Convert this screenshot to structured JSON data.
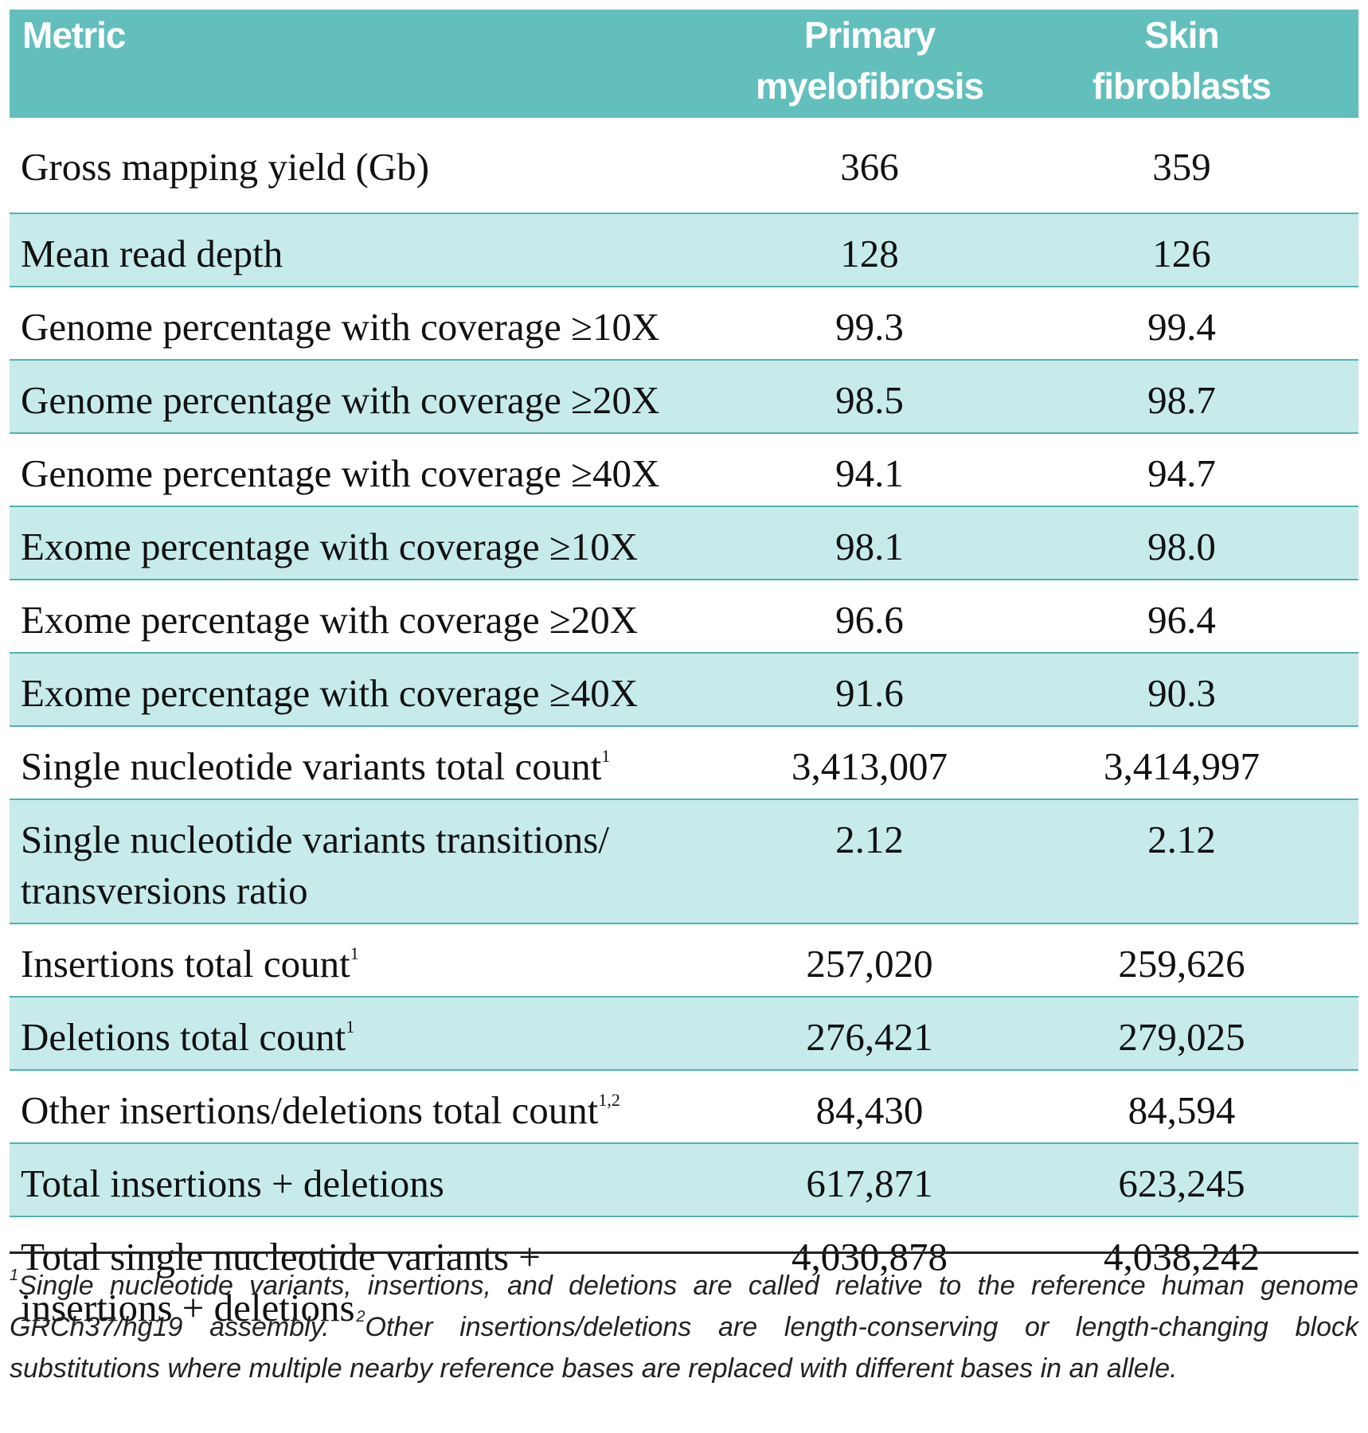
{
  "table": {
    "headers": {
      "metric": "Metric",
      "primary_myelofibrosis": [
        "Primary",
        "myelofibrosis"
      ],
      "skin_fibroblasts": [
        "Skin",
        "fibroblasts"
      ]
    },
    "rows": [
      {
        "metric": "Gross mapping yield (Gb)",
        "sup": "",
        "primary": "366",
        "skin": "359"
      },
      {
        "metric": "Mean read depth",
        "sup": "",
        "primary": "128",
        "skin": "126"
      },
      {
        "metric": "Genome percentage with coverage ≥10X",
        "sup": "",
        "primary": "99.3",
        "skin": "99.4"
      },
      {
        "metric": "Genome percentage with coverage ≥20X",
        "sup": "",
        "primary": "98.5",
        "skin": "98.7"
      },
      {
        "metric": "Genome percentage with coverage ≥40X",
        "sup": "",
        "primary": "94.1",
        "skin": "94.7"
      },
      {
        "metric": "Exome percentage with coverage ≥10X",
        "sup": "",
        "primary": "98.1",
        "skin": "98.0"
      },
      {
        "metric": "Exome percentage with coverage ≥20X",
        "sup": "",
        "primary": "96.6",
        "skin": "96.4"
      },
      {
        "metric": "Exome percentage with coverage ≥40X",
        "sup": "",
        "primary": "91.6",
        "skin": "90.3"
      },
      {
        "metric": "Single nucleotide variants total count",
        "sup": "1",
        "primary": "3,413,007",
        "skin": "3,414,997"
      },
      {
        "metric": [
          "Single nucleotide variants transitions/",
          "transversions ratio"
        ],
        "sup": "",
        "primary": "2.12",
        "skin": "2.12"
      },
      {
        "metric": "Insertions total count",
        "sup": "1",
        "primary": "257,020",
        "skin": "259,626"
      },
      {
        "metric": "Deletions total count",
        "sup": "1",
        "primary": "276,421",
        "skin": "279,025"
      },
      {
        "metric": "Other insertions/deletions total count",
        "sup": "1,2",
        "primary": "84,430",
        "skin": "84,594"
      },
      {
        "metric": "Total insertions + deletions",
        "sup": "",
        "primary": "617,871",
        "skin": "623,245"
      },
      {
        "metric": [
          "Total single nucleotide variants +",
          "insertions + deletions"
        ],
        "sup": "",
        "primary": "4,030,878",
        "skin": "4,038,242"
      }
    ]
  },
  "footnote": {
    "mark1": "1",
    "text1": "Single nucleotide variants, insertions, and deletions are called relative to the reference human genome GRCh37/hg19 assembly. ",
    "mark2": "2",
    "text2": "Other insertions/deletions are length-conserving or length-changing block substitutions where multiple nearby reference bases are replaced with different bases in an allele."
  },
  "colors": {
    "header_bg": "#62bfbc",
    "row_shade": "#c7ebeb",
    "rule": "#4fb3b0"
  }
}
